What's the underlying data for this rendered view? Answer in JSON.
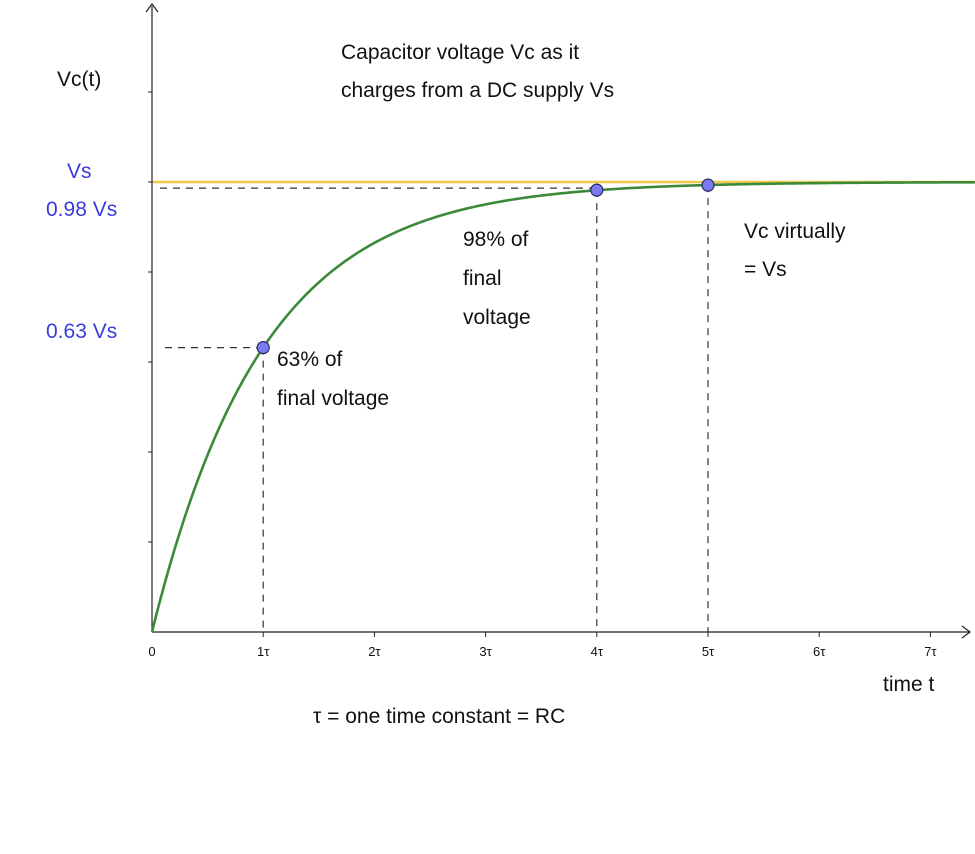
{
  "chart_data": {
    "type": "line",
    "title_lines": [
      "Capacitor voltage Vc as it",
      "charges from a DC supply Vs"
    ],
    "ylabel": "Vc(t)",
    "xlabel": "time t",
    "footnote": "τ = one time constant = RC",
    "x_tick_labels": [
      "0",
      "1τ",
      "2τ",
      "3τ",
      "4τ",
      "5τ",
      "6τ",
      "7τ"
    ],
    "x_ticks": [
      0,
      1,
      2,
      3,
      4,
      5,
      6,
      7
    ],
    "xlim": [
      0,
      7.5
    ],
    "ylim": [
      0,
      1.2
    ],
    "y_reference_labels": [
      {
        "label": "Vs",
        "value": 1.0
      },
      {
        "label": "0.98 Vs",
        "value": 0.982
      },
      {
        "label": "0.63 Vs",
        "value": 0.632
      }
    ],
    "series": [
      {
        "function": "1 - exp(-t)",
        "color": "#3a8a3a",
        "x": [
          0,
          0.25,
          0.5,
          0.75,
          1,
          1.5,
          2,
          2.5,
          3,
          3.5,
          4,
          4.5,
          5,
          6,
          7,
          7.5
        ],
        "values": [
          0,
          0.221,
          0.393,
          0.528,
          0.632,
          0.777,
          0.865,
          0.918,
          0.95,
          0.97,
          0.982,
          0.989,
          0.993,
          0.998,
          0.999,
          0.999
        ]
      }
    ],
    "asymptote": {
      "value": 1.0,
      "color": "#f2c94c"
    },
    "highlight_points": [
      {
        "x": 1,
        "y": 0.632,
        "note_lines": [
          "63% of",
          "final voltage"
        ]
      },
      {
        "x": 4,
        "y": 0.982,
        "note_lines": [
          "98% of",
          "final",
          "voltage"
        ]
      },
      {
        "x": 5,
        "y": 0.993,
        "note_lines": [
          "Vc virtually",
          "= Vs"
        ]
      }
    ],
    "colors": {
      "curve": "#3a8a3a",
      "asymptote": "#f2c94c",
      "point": "#7b7bf0",
      "ref_label": "#3b3bdc"
    }
  }
}
